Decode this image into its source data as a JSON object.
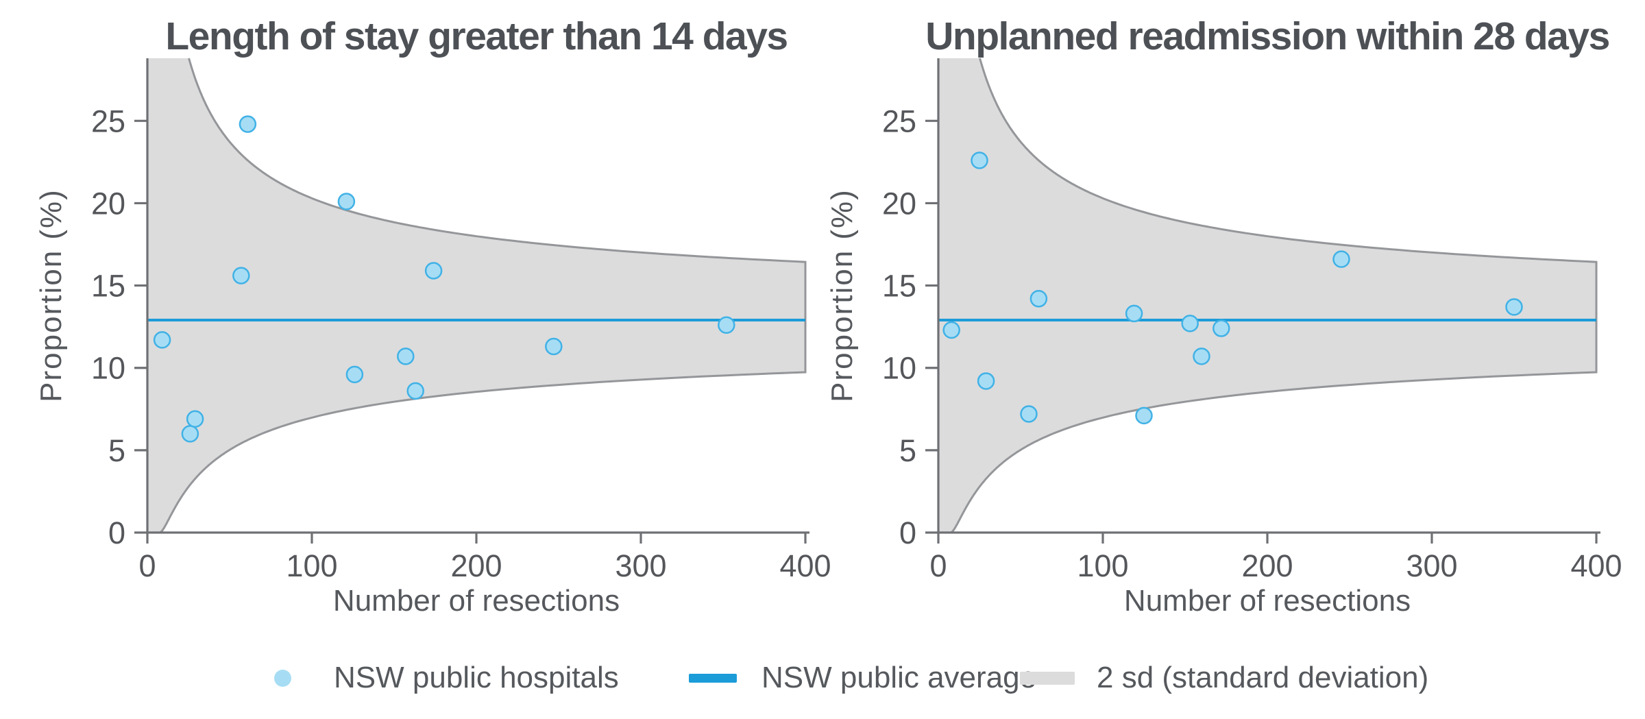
{
  "page": {
    "background": "#ffffff"
  },
  "colors": {
    "point_fill": "#a7ddf4",
    "point_stroke": "#41b2e6",
    "average_line": "#1b9cd8",
    "band_fill": "#dcdcdd",
    "band_stroke": "#949699",
    "axis": "#6e7074",
    "title_text": "#4d5156",
    "label_text": "#55585c",
    "tick_text": "#54565a"
  },
  "legend": {
    "items": [
      {
        "label": "NSW public hospitals",
        "swatch": "point-marker"
      },
      {
        "label": "NSW public average",
        "swatch": "line-marker"
      },
      {
        "label": "2 sd (standard deviation)",
        "swatch": "band-marker"
      }
    ]
  },
  "chart_data": [
    {
      "type": "scatter",
      "subtype": "funnel-plot",
      "title": "Length of stay greater than 14 days",
      "xlabel": "Number of resections",
      "ylabel": "Proportion (%)",
      "xlim": [
        0,
        400
      ],
      "ylim": [
        0,
        28.8
      ],
      "xticks": [
        0,
        100,
        200,
        300,
        400
      ],
      "yticks": [
        0,
        5,
        10,
        15,
        20,
        25
      ],
      "grid": false,
      "average": 12.9,
      "band_2sd": {
        "description": "2 sd funnel control limits around the NSW public average",
        "upper_at_xmax": 16.5,
        "lower_at_xmax": 9.7
      },
      "points": [
        [
          9,
          11.7
        ],
        [
          26,
          6.0
        ],
        [
          29,
          6.9
        ],
        [
          57,
          15.6
        ],
        [
          61,
          24.8
        ],
        [
          121,
          20.1
        ],
        [
          126,
          9.6
        ],
        [
          157,
          10.7
        ],
        [
          163,
          8.6
        ],
        [
          174,
          15.9
        ],
        [
          247,
          11.3
        ],
        [
          352,
          12.6
        ]
      ]
    },
    {
      "type": "scatter",
      "subtype": "funnel-plot",
      "title": "Unplanned readmission within 28 days",
      "xlabel": "Number of resections",
      "ylabel": "Proportion (%)",
      "xlim": [
        0,
        400
      ],
      "ylim": [
        0,
        28.8
      ],
      "xticks": [
        0,
        100,
        200,
        300,
        400
      ],
      "yticks": [
        0,
        5,
        10,
        15,
        20,
        25
      ],
      "grid": false,
      "average": 12.9,
      "band_2sd": {
        "description": "2 sd funnel control limits around the NSW public average",
        "upper_at_xmax": 16.6,
        "lower_at_xmax": 9.7
      },
      "points": [
        [
          8,
          12.3
        ],
        [
          25,
          22.6
        ],
        [
          29,
          9.2
        ],
        [
          55,
          7.2
        ],
        [
          61,
          14.2
        ],
        [
          119,
          13.3
        ],
        [
          125,
          7.1
        ],
        [
          153,
          12.7
        ],
        [
          160,
          10.7
        ],
        [
          172,
          12.4
        ],
        [
          245,
          16.6
        ],
        [
          350,
          13.7
        ]
      ]
    }
  ]
}
